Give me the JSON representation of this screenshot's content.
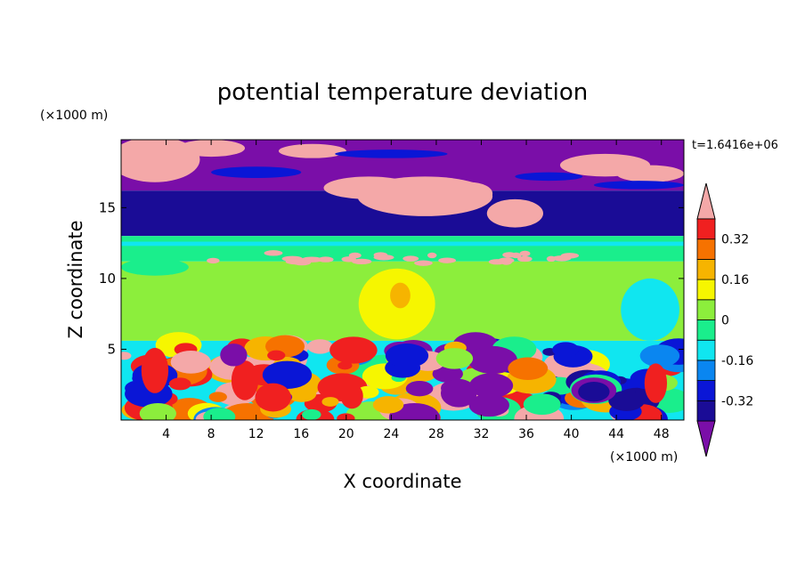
{
  "chart_data": {
    "type": "heatmap",
    "title": "potential temperature deviation",
    "xlabel": "X coordinate",
    "ylabel": "Z coordinate",
    "x_unit": "(×1000 m)",
    "y_unit": "(×1000 m)",
    "time_label": "t=1.6416e+06",
    "xlim": [
      0,
      50
    ],
    "ylim": [
      0,
      19.8
    ],
    "x_ticks": [
      4,
      8,
      12,
      16,
      20,
      24,
      28,
      32,
      36,
      40,
      44,
      48
    ],
    "y_ticks": [
      5,
      10,
      15
    ],
    "colorbar": {
      "levels": [
        -0.48,
        -0.4,
        -0.32,
        -0.24,
        -0.16,
        -0.08,
        0,
        0.08,
        0.16,
        0.24,
        0.32,
        0.4
      ],
      "colors": [
        "#7a0ea8",
        "#1a0c96",
        "#0a16d6",
        "#0a86f0",
        "#10e6f0",
        "#1aee8c",
        "#8cee3c",
        "#f6f600",
        "#f6b400",
        "#f67200",
        "#f02020",
        "#f4a8a8"
      ],
      "tick_labels": [
        "0.32",
        "0.16",
        "0",
        "-0.16",
        "-0.32"
      ],
      "tick_values": [
        0.32,
        0.16,
        0,
        -0.16,
        -0.32
      ],
      "extend": "both"
    },
    "bands": [
      {
        "z_bottom": 16.2,
        "z_top": 19.8,
        "level": "-0.48",
        "note": "upper layer purple with pink patches"
      },
      {
        "z_bottom": 13.2,
        "z_top": 16.2,
        "level": "-0.40"
      },
      {
        "z_bottom": 11.2,
        "z_top": 13.2,
        "level": "-0.08"
      },
      {
        "z_bottom": 5.6,
        "z_top": 11.2,
        "level": "0.00"
      },
      {
        "z_bottom": 0,
        "z_top": 5.6,
        "level": "mixed",
        "note": "turbulent boundary layer"
      }
    ]
  }
}
